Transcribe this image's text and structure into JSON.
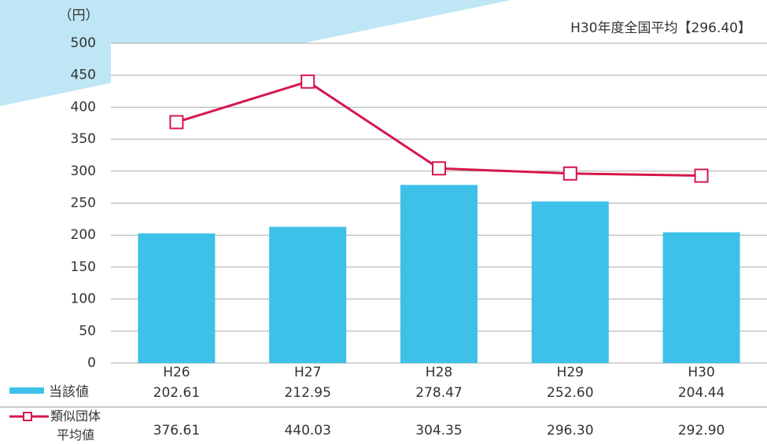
{
  "chart_data": {
    "type": "combo",
    "y_unit_label": "（円）",
    "annotation": "H30年度全国平均【296.40】",
    "categories": [
      "H26",
      "H27",
      "H28",
      "H29",
      "H30"
    ],
    "series": [
      {
        "name": "当該値",
        "type": "bar",
        "color": "#3ec1e8",
        "values": [
          202.61,
          212.95,
          278.47,
          252.6,
          204.44
        ],
        "value_labels": [
          "202.61",
          "212.95",
          "278.47",
          "252.60",
          "204.44"
        ]
      },
      {
        "name": "類似団体\n平均値",
        "type": "line",
        "color": "#d6174d",
        "values": [
          376.61,
          440.03,
          304.35,
          296.3,
          292.9
        ],
        "value_labels": [
          "376.61",
          "440.03",
          "304.35",
          "296.30",
          "292.90"
        ]
      }
    ],
    "ylim": [
      0,
      500
    ],
    "yticks": [
      0,
      50,
      100,
      150,
      200,
      250,
      300,
      350,
      400,
      450,
      500
    ],
    "grid": true
  }
}
